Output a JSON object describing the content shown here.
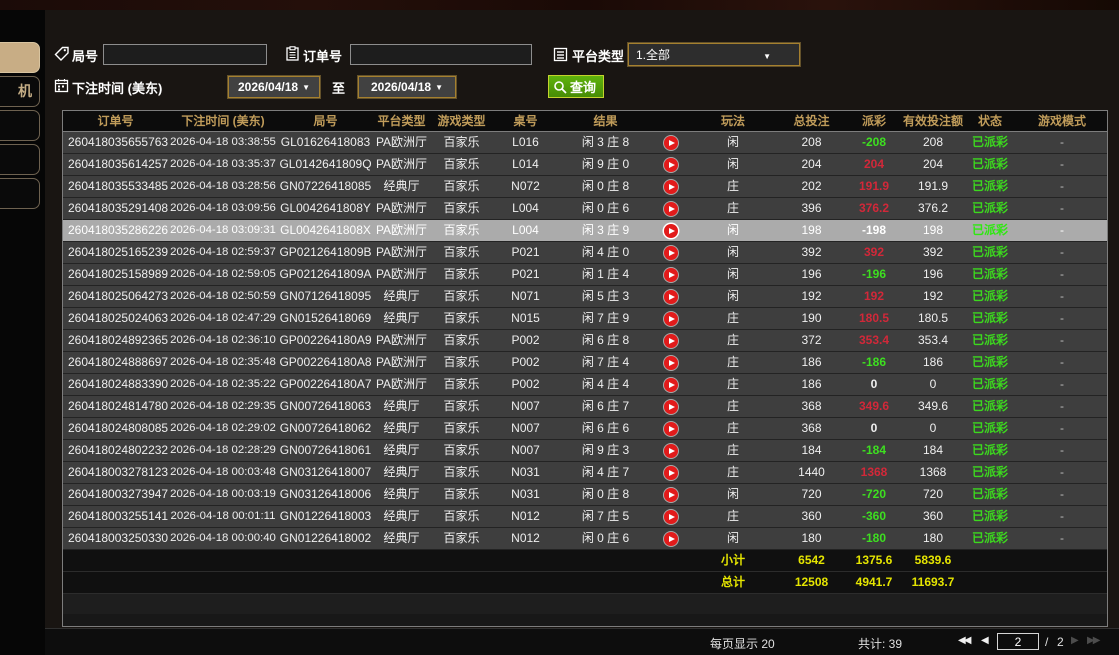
{
  "titlebar": {
    "close": "×"
  },
  "sidebar": {
    "items": [
      {
        "label": "",
        "active": true
      },
      {
        "label": "机",
        "active": false
      },
      {
        "label": "",
        "active": false
      },
      {
        "label": "",
        "active": false
      },
      {
        "label": "",
        "active": false
      }
    ]
  },
  "filters": {
    "round_label": "局号",
    "round_value": "",
    "order_label": "订单号",
    "order_value": "",
    "platform_label": "平台类型",
    "platform_value": "1.全部",
    "bet_time_label": "下注时间 (美东)",
    "date_from": "2026/04/18",
    "to_label": "至",
    "date_to": "2026/04/18",
    "search_label": "查询"
  },
  "table": {
    "columns": [
      "订单号",
      "下注时间 (美东)",
      "局号",
      "平台类型",
      "游戏类型",
      "桌号",
      "结果",
      "",
      "玩法",
      "总投注",
      "派彩",
      "有效投注额",
      "状态",
      "游戏模式"
    ],
    "rows": [
      {
        "order": "260418035655763",
        "time": "2026-04-18 03:38:55",
        "round": "GL01626418083",
        "platform": "PA欧洲厅",
        "game": "百家乐",
        "table": "L016",
        "result": "闲 3 庄 8",
        "bet": "闲",
        "wager": "208",
        "payout": "-208",
        "pc": "neg",
        "valid": "208",
        "status": "已派彩",
        "mode": "-",
        "selected": false
      },
      {
        "order": "260418035614257",
        "time": "2026-04-18 03:35:37",
        "round": "GL0142641809Q",
        "platform": "PA欧洲厅",
        "game": "百家乐",
        "table": "L014",
        "result": "闲 9 庄 0",
        "bet": "闲",
        "wager": "204",
        "payout": "204",
        "pc": "pos",
        "valid": "204",
        "status": "已派彩",
        "mode": "-",
        "selected": false
      },
      {
        "order": "260418035533485",
        "time": "2026-04-18 03:28:56",
        "round": "GN07226418085",
        "platform": "经典厅",
        "game": "百家乐",
        "table": "N072",
        "result": "闲 0 庄 8",
        "bet": "庄",
        "wager": "202",
        "payout": "191.9",
        "pc": "pos",
        "valid": "191.9",
        "status": "已派彩",
        "mode": "-",
        "selected": false
      },
      {
        "order": "260418035291408",
        "time": "2026-04-18 03:09:56",
        "round": "GL0042641808Y",
        "platform": "PA欧洲厅",
        "game": "百家乐",
        "table": "L004",
        "result": "闲 0 庄 6",
        "bet": "庄",
        "wager": "396",
        "payout": "376.2",
        "pc": "pos",
        "valid": "376.2",
        "status": "已派彩",
        "mode": "-",
        "selected": false
      },
      {
        "order": "260418035286226",
        "time": "2026-04-18 03:09:31",
        "round": "GL0042641808X",
        "platform": "PA欧洲厅",
        "game": "百家乐",
        "table": "L004",
        "result": "闲 3 庄 9",
        "bet": "闲",
        "wager": "198",
        "payout": "-198",
        "pc": "neg",
        "valid": "198",
        "status": "已派彩",
        "mode": "-",
        "selected": true
      },
      {
        "order": "260418025165239",
        "time": "2026-04-18 02:59:37",
        "round": "GP0212641809B",
        "platform": "PA欧洲厅",
        "game": "百家乐",
        "table": "P021",
        "result": "闲 4 庄 0",
        "bet": "闲",
        "wager": "392",
        "payout": "392",
        "pc": "pos",
        "valid": "392",
        "status": "已派彩",
        "mode": "-",
        "selected": false
      },
      {
        "order": "260418025158989",
        "time": "2026-04-18 02:59:05",
        "round": "GP0212641809A",
        "platform": "PA欧洲厅",
        "game": "百家乐",
        "table": "P021",
        "result": "闲 1 庄 4",
        "bet": "闲",
        "wager": "196",
        "payout": "-196",
        "pc": "neg",
        "valid": "196",
        "status": "已派彩",
        "mode": "-",
        "selected": false
      },
      {
        "order": "260418025064273",
        "time": "2026-04-18 02:50:59",
        "round": "GN07126418095",
        "platform": "经典厅",
        "game": "百家乐",
        "table": "N071",
        "result": "闲 5 庄 3",
        "bet": "闲",
        "wager": "192",
        "payout": "192",
        "pc": "pos",
        "valid": "192",
        "status": "已派彩",
        "mode": "-",
        "selected": false
      },
      {
        "order": "260418025024063",
        "time": "2026-04-18 02:47:29",
        "round": "GN01526418069",
        "platform": "经典厅",
        "game": "百家乐",
        "table": "N015",
        "result": "闲 7 庄 9",
        "bet": "庄",
        "wager": "190",
        "payout": "180.5",
        "pc": "pos",
        "valid": "180.5",
        "status": "已派彩",
        "mode": "-",
        "selected": false
      },
      {
        "order": "260418024892365",
        "time": "2026-04-18 02:36:10",
        "round": "GP002264180A9",
        "platform": "PA欧洲厅",
        "game": "百家乐",
        "table": "P002",
        "result": "闲 6 庄 8",
        "bet": "庄",
        "wager": "372",
        "payout": "353.4",
        "pc": "pos",
        "valid": "353.4",
        "status": "已派彩",
        "mode": "-",
        "selected": false
      },
      {
        "order": "260418024888697",
        "time": "2026-04-18 02:35:48",
        "round": "GP002264180A8",
        "platform": "PA欧洲厅",
        "game": "百家乐",
        "table": "P002",
        "result": "闲 7 庄 4",
        "bet": "庄",
        "wager": "186",
        "payout": "-186",
        "pc": "neg",
        "valid": "186",
        "status": "已派彩",
        "mode": "-",
        "selected": false
      },
      {
        "order": "260418024883390",
        "time": "2026-04-18 02:35:22",
        "round": "GP002264180A7",
        "platform": "PA欧洲厅",
        "game": "百家乐",
        "table": "P002",
        "result": "闲 4 庄 4",
        "bet": "庄",
        "wager": "186",
        "payout": "0",
        "pc": "zero",
        "valid": "0",
        "status": "已派彩",
        "mode": "-",
        "selected": false
      },
      {
        "order": "260418024814780",
        "time": "2026-04-18 02:29:35",
        "round": "GN00726418063",
        "platform": "经典厅",
        "game": "百家乐",
        "table": "N007",
        "result": "闲 6 庄 7",
        "bet": "庄",
        "wager": "368",
        "payout": "349.6",
        "pc": "pos",
        "valid": "349.6",
        "status": "已派彩",
        "mode": "-",
        "selected": false
      },
      {
        "order": "260418024808085",
        "time": "2026-04-18 02:29:02",
        "round": "GN00726418062",
        "platform": "经典厅",
        "game": "百家乐",
        "table": "N007",
        "result": "闲 6 庄 6",
        "bet": "庄",
        "wager": "368",
        "payout": "0",
        "pc": "zero",
        "valid": "0",
        "status": "已派彩",
        "mode": "-",
        "selected": false
      },
      {
        "order": "260418024802232",
        "time": "2026-04-18 02:28:29",
        "round": "GN00726418061",
        "platform": "经典厅",
        "game": "百家乐",
        "table": "N007",
        "result": "闲 9 庄 3",
        "bet": "庄",
        "wager": "184",
        "payout": "-184",
        "pc": "neg",
        "valid": "184",
        "status": "已派彩",
        "mode": "-",
        "selected": false
      },
      {
        "order": "260418003278123",
        "time": "2026-04-18 00:03:48",
        "round": "GN03126418007",
        "platform": "经典厅",
        "game": "百家乐",
        "table": "N031",
        "result": "闲 4 庄 7",
        "bet": "庄",
        "wager": "1440",
        "payout": "1368",
        "pc": "pos",
        "valid": "1368",
        "status": "已派彩",
        "mode": "-",
        "selected": false
      },
      {
        "order": "260418003273947",
        "time": "2026-04-18 00:03:19",
        "round": "GN03126418006",
        "platform": "经典厅",
        "game": "百家乐",
        "table": "N031",
        "result": "闲 0 庄 8",
        "bet": "闲",
        "wager": "720",
        "payout": "-720",
        "pc": "neg",
        "valid": "720",
        "status": "已派彩",
        "mode": "-",
        "selected": false
      },
      {
        "order": "260418003255141",
        "time": "2026-04-18 00:01:11",
        "round": "GN01226418003",
        "platform": "经典厅",
        "game": "百家乐",
        "table": "N012",
        "result": "闲 7 庄 5",
        "bet": "庄",
        "wager": "360",
        "payout": "-360",
        "pc": "neg",
        "valid": "360",
        "status": "已派彩",
        "mode": "-",
        "selected": false
      },
      {
        "order": "260418003250330",
        "time": "2026-04-18 00:00:40",
        "round": "GN01226418002",
        "platform": "经典厅",
        "game": "百家乐",
        "table": "N012",
        "result": "闲 0 庄 6",
        "bet": "闲",
        "wager": "180",
        "payout": "-180",
        "pc": "neg",
        "valid": "180",
        "status": "已派彩",
        "mode": "-",
        "selected": false
      }
    ],
    "subtotal": {
      "label": "小计",
      "wager": "6542",
      "payout": "1375.6",
      "valid": "5839.6"
    },
    "total": {
      "label": "总计",
      "wager": "12508",
      "payout": "4941.7",
      "valid": "11693.7"
    }
  },
  "footer": {
    "per_page": "每页显示 20",
    "count": "共计: 39",
    "page": "2",
    "sep": "/",
    "pages": "2"
  },
  "colors": {
    "payout_positive": "#d22839",
    "payout_negative": "#3ddf20",
    "status_green": "#3cd81e",
    "totals_yellow": "#e5e500",
    "header_gold": "#c09c5a",
    "search_green": "#4f9b08",
    "selected_row": "#ababab"
  }
}
